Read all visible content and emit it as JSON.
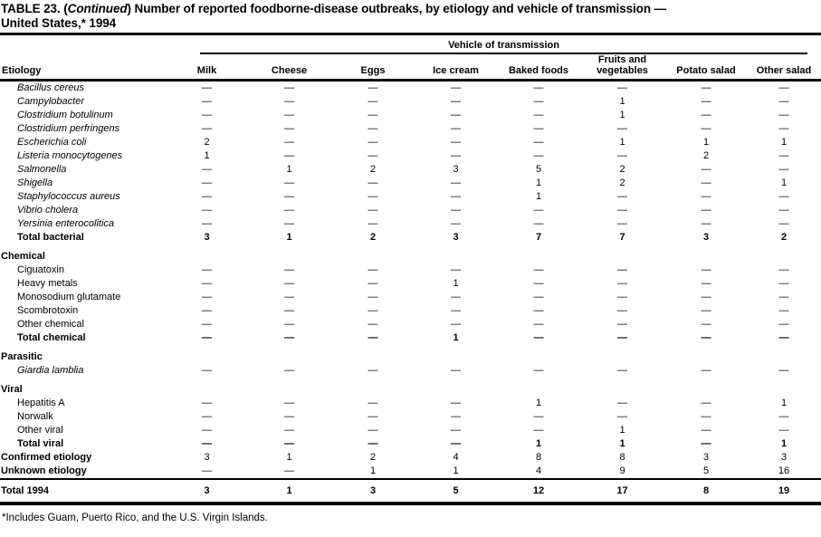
{
  "title": {
    "part1": "TABLE 23. (",
    "part2": "Continued",
    "part3": ") Number of reported foodborne-disease outbreaks, by etiology and vehicle of transmission —",
    "part4": "United States,* 1994"
  },
  "table": {
    "spanner": "Vehicle of transmission",
    "etiology_header": "Etiology",
    "columns": [
      "Milk",
      "Cheese",
      "Eggs",
      "Ice cream",
      "Baked foods",
      "Fruits and vegetables",
      "Potato salad",
      "Other salad"
    ],
    "rows": [
      {
        "label": "Bacillus cereus",
        "cls": "sp",
        "values": [
          "—",
          "—",
          "—",
          "—",
          "—",
          "—",
          "—",
          "—"
        ]
      },
      {
        "label": "Campylobacter",
        "cls": "sp",
        "values": [
          "—",
          "—",
          "—",
          "—",
          "—",
          "1",
          "—",
          "—"
        ]
      },
      {
        "label": "Clostridium botulinum",
        "cls": "sp",
        "values": [
          "—",
          "—",
          "—",
          "—",
          "—",
          "1",
          "—",
          "—"
        ]
      },
      {
        "label": "Clostridium perfringens",
        "cls": "sp",
        "values": [
          "—",
          "—",
          "—",
          "—",
          "—",
          "—",
          "—",
          "—"
        ]
      },
      {
        "label": "Escherichia coli",
        "cls": "sp",
        "values": [
          "2",
          "—",
          "—",
          "—",
          "—",
          "1",
          "1",
          "1"
        ]
      },
      {
        "label": "Listeria monocytogenes",
        "cls": "sp",
        "values": [
          "1",
          "—",
          "—",
          "—",
          "—",
          "—",
          "2",
          "—"
        ]
      },
      {
        "label": "Salmonella",
        "cls": "sp",
        "values": [
          "—",
          "1",
          "2",
          "3",
          "5",
          "2",
          "—",
          "—"
        ]
      },
      {
        "label": "Shigella",
        "cls": "sp",
        "values": [
          "—",
          "—",
          "—",
          "—",
          "1",
          "2",
          "—",
          "1"
        ]
      },
      {
        "label": "Staphylococcus aureus",
        "cls": "sp",
        "values": [
          "—",
          "—",
          "—",
          "—",
          "1",
          "—",
          "—",
          "—"
        ]
      },
      {
        "label": "Vibrio cholera",
        "cls": "sp",
        "values": [
          "—",
          "—",
          "—",
          "—",
          "—",
          "—",
          "—",
          "—"
        ]
      },
      {
        "label": "Yersinia enterocolitica",
        "cls": "sp",
        "values": [
          "—",
          "—",
          "—",
          "—",
          "—",
          "—",
          "—",
          "—"
        ]
      },
      {
        "label": "Total bacterial",
        "cls": "tot",
        "total": true,
        "values": [
          "3",
          "1",
          "2",
          "3",
          "7",
          "7",
          "3",
          "2"
        ]
      },
      {
        "label": "Chemical",
        "cls": "sec",
        "gap": true,
        "values": [
          "",
          "",
          "",
          "",
          "",
          "",
          "",
          ""
        ]
      },
      {
        "label": "Ciguatoxin",
        "cls": "pl",
        "values": [
          "—",
          "—",
          "—",
          "—",
          "—",
          "—",
          "—",
          "—"
        ]
      },
      {
        "label": "Heavy metals",
        "cls": "pl",
        "values": [
          "—",
          "—",
          "—",
          "1",
          "—",
          "—",
          "—",
          "—"
        ]
      },
      {
        "label": "Monosodium glutamate",
        "cls": "pl",
        "values": [
          "—",
          "—",
          "—",
          "—",
          "—",
          "—",
          "—",
          "—"
        ]
      },
      {
        "label": "Scombrotoxin",
        "cls": "pl",
        "values": [
          "—",
          "—",
          "—",
          "—",
          "—",
          "—",
          "—",
          "—"
        ]
      },
      {
        "label": "Other chemical",
        "cls": "pl",
        "values": [
          "—",
          "—",
          "—",
          "—",
          "—",
          "—",
          "—",
          "—"
        ]
      },
      {
        "label": "Total chemical",
        "cls": "tot",
        "total": true,
        "values": [
          "—",
          "—",
          "—",
          "1",
          "—",
          "—",
          "—",
          "—"
        ]
      },
      {
        "label": "Parasitic",
        "cls": "sec",
        "gap": true,
        "values": [
          "",
          "",
          "",
          "",
          "",
          "",
          "",
          ""
        ]
      },
      {
        "label": "Giardia lamblia",
        "cls": "sp",
        "values": [
          "—",
          "—",
          "—",
          "—",
          "—",
          "—",
          "—",
          "—"
        ]
      },
      {
        "label": "Viral",
        "cls": "sec",
        "gap": true,
        "values": [
          "",
          "",
          "",
          "",
          "",
          "",
          "",
          ""
        ]
      },
      {
        "label": "Hepatitis A",
        "cls": "pl",
        "values": [
          "—",
          "—",
          "—",
          "—",
          "1",
          "—",
          "—",
          "1"
        ]
      },
      {
        "label": "Norwalk",
        "cls": "pl",
        "values": [
          "—",
          "—",
          "—",
          "—",
          "—",
          "—",
          "—",
          "—"
        ]
      },
      {
        "label": "Other viral",
        "cls": "pl",
        "values": [
          "—",
          "—",
          "—",
          "—",
          "—",
          "1",
          "—",
          "—"
        ]
      },
      {
        "label": "Total viral",
        "cls": "tot",
        "total": true,
        "values": [
          "—",
          "—",
          "—",
          "—",
          "1",
          "1",
          "—",
          "1"
        ]
      },
      {
        "label": "Confirmed etiology",
        "cls": "fb",
        "values": [
          "3",
          "1",
          "2",
          "4",
          "8",
          "8",
          "3",
          "3"
        ]
      },
      {
        "label": "Unknown etiology",
        "cls": "fb",
        "values": [
          "—",
          "—",
          "1",
          "1",
          "4",
          "9",
          "5",
          "16"
        ]
      },
      {
        "label": "Total 1994",
        "cls": "fb",
        "grand": true,
        "values": [
          "3",
          "1",
          "3",
          "5",
          "12",
          "17",
          "8",
          "19"
        ]
      }
    ]
  },
  "footnote": "*Includes Guam, Puerto Rico, and the U.S. Virgin Islands."
}
